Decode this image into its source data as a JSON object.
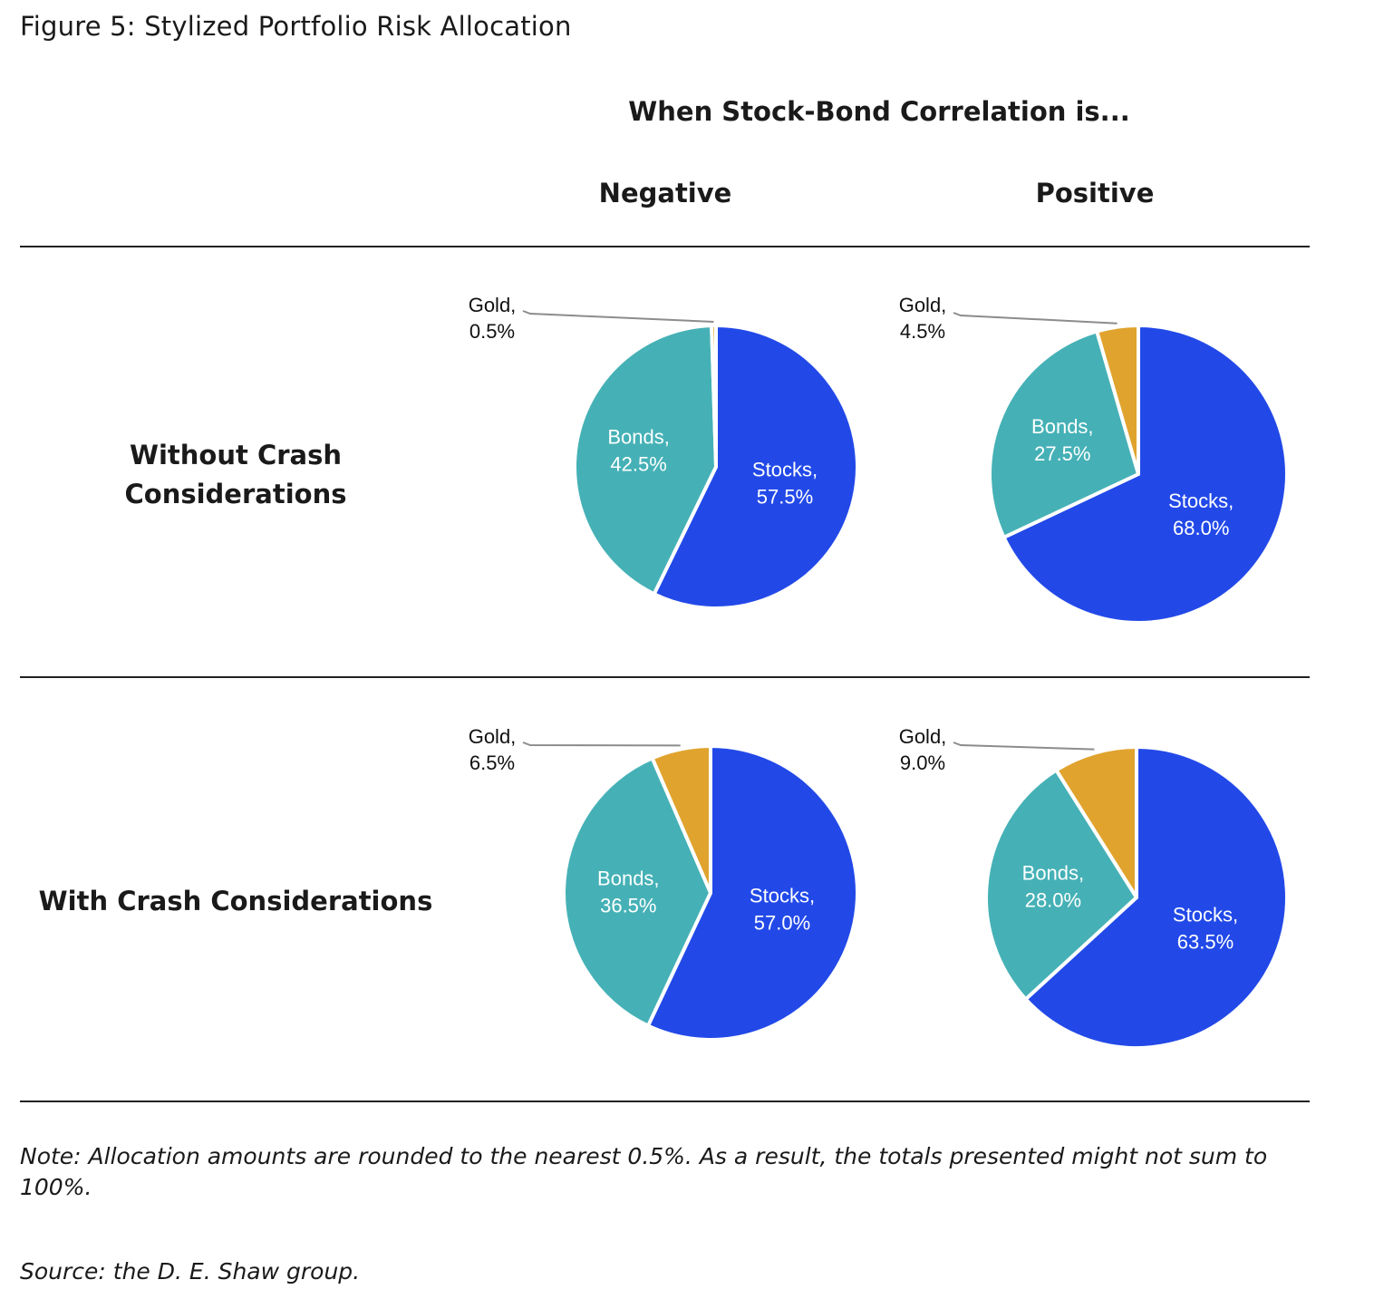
{
  "figure_title": "Figure 5: Stylized Portfolio Risk Allocation",
  "supertitle": "When Stock-Bond Correlation is...",
  "columns": [
    "Negative",
    "Positive"
  ],
  "rows": [
    {
      "label_lines": [
        "Without Crash",
        "Considerations"
      ]
    },
    {
      "label_lines": [
        "With Crash Considerations"
      ]
    }
  ],
  "colors": {
    "Stocks": "#2249e8",
    "Bonds": "#45b1b6",
    "Gold": "#e0a32e"
  },
  "chart_data": [
    {
      "type": "pie",
      "row": "Without Crash Considerations",
      "column": "Negative",
      "slices": [
        {
          "name": "Stocks",
          "value": 57.5,
          "label_lines": [
            "Stocks,",
            "57.5%"
          ]
        },
        {
          "name": "Bonds",
          "value": 42.5,
          "label_lines": [
            "Bonds,",
            "42.5%"
          ]
        },
        {
          "name": "Gold",
          "value": 0.5,
          "label_lines": [
            "Gold,",
            "0.5%"
          ]
        }
      ]
    },
    {
      "type": "pie",
      "row": "Without Crash Considerations",
      "column": "Positive",
      "slices": [
        {
          "name": "Stocks",
          "value": 68.0,
          "label_lines": [
            "Stocks,",
            "68.0%"
          ]
        },
        {
          "name": "Bonds",
          "value": 27.5,
          "label_lines": [
            "Bonds,",
            "27.5%"
          ]
        },
        {
          "name": "Gold",
          "value": 4.5,
          "label_lines": [
            "Gold,",
            "4.5%"
          ]
        }
      ]
    },
    {
      "type": "pie",
      "row": "With Crash Considerations",
      "column": "Negative",
      "slices": [
        {
          "name": "Stocks",
          "value": 57.0,
          "label_lines": [
            "Stocks,",
            "57.0%"
          ]
        },
        {
          "name": "Bonds",
          "value": 36.5,
          "label_lines": [
            "Bonds,",
            "36.5%"
          ]
        },
        {
          "name": "Gold",
          "value": 6.5,
          "label_lines": [
            "Gold,",
            "6.5%"
          ]
        }
      ]
    },
    {
      "type": "pie",
      "row": "With Crash Considerations",
      "column": "Positive",
      "slices": [
        {
          "name": "Stocks",
          "value": 63.5,
          "label_lines": [
            "Stocks,",
            "63.5%"
          ]
        },
        {
          "name": "Bonds",
          "value": 28.0,
          "label_lines": [
            "Bonds,",
            "28.0%"
          ]
        },
        {
          "name": "Gold",
          "value": 9.0,
          "label_lines": [
            "Gold,",
            "9.0%"
          ]
        }
      ]
    }
  ],
  "notes": {
    "note": "Note: Allocation amounts are rounded to the nearest 0.5%. As a result, the totals presented might not sum to 100%.",
    "source": "Source: the D. E. Shaw group."
  }
}
